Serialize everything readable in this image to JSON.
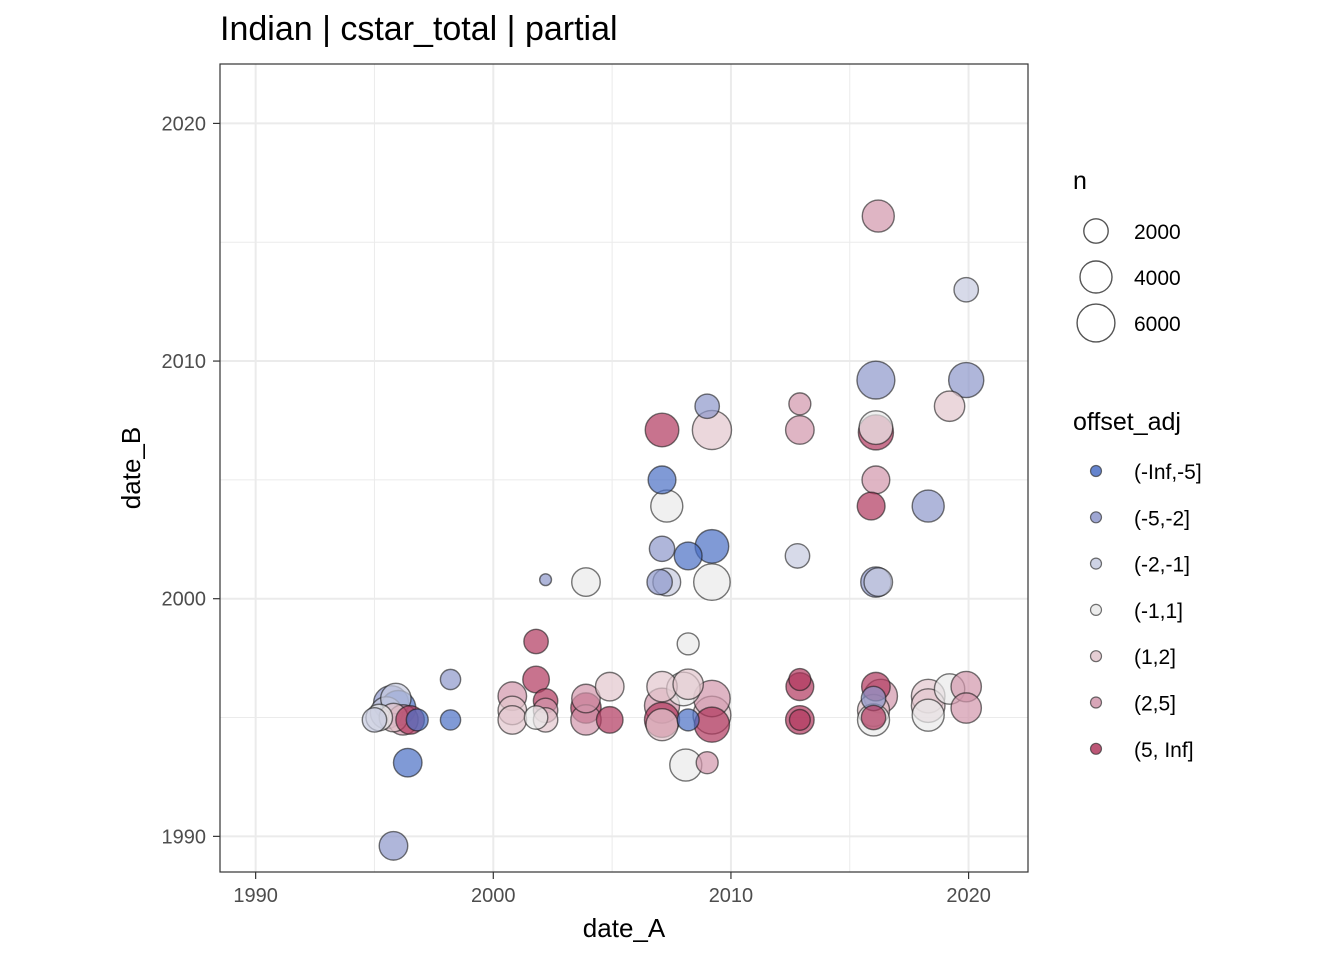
{
  "chart_data": {
    "type": "scatter",
    "title": "Indian | cstar_total | partial",
    "xlabel": "date_A",
    "ylabel": "date_B",
    "xlim": [
      1988.5,
      2022.5
    ],
    "ylim": [
      1988.5,
      2022.5
    ],
    "x_ticks": [
      "1990",
      "2000",
      "2010",
      "2020"
    ],
    "y_ticks": [
      "1990",
      "2000",
      "2010",
      "2020"
    ],
    "grid": true,
    "legend_position": "right",
    "size_legend": {
      "title": "n",
      "entries": [
        {
          "label": "2000",
          "value": 2000
        },
        {
          "label": "4000",
          "value": 4000
        },
        {
          "label": "6000",
          "value": 6000
        }
      ]
    },
    "color_legend": {
      "title": "offset_adj",
      "entries": [
        {
          "label": "(-Inf,-5]",
          "color": "#4A6FC5"
        },
        {
          "label": "(-5,-2]",
          "color": "#8D97CB"
        },
        {
          "label": "(-2,-1]",
          "color": "#C6CBE0"
        },
        {
          "label": "(-1,1]",
          "color": "#E9E9E9"
        },
        {
          "label": "(1,2]",
          "color": "#E2C6CD"
        },
        {
          "label": "(2,5]",
          "color": "#D196AB"
        },
        {
          "label": "(5, Inf]",
          "color": "#B0385E"
        }
      ]
    },
    "points": [
      {
        "x": 1995.8,
        "y": 1989.6,
        "n": 3000,
        "group": "(-5,-2]"
      },
      {
        "x": 1996.4,
        "y": 1993.1,
        "n": 3000,
        "group": "(-Inf,-5]"
      },
      {
        "x": 1995.0,
        "y": 1994.9,
        "n": 2000,
        "group": "(-2,-1]"
      },
      {
        "x": 1995.2,
        "y": 1995.0,
        "n": 2500,
        "group": "(-1,1]"
      },
      {
        "x": 1995.5,
        "y": 1995.2,
        "n": 4000,
        "group": "(-2,-1]"
      },
      {
        "x": 1995.7,
        "y": 1995.6,
        "n": 5000,
        "group": "(-5,-2]"
      },
      {
        "x": 1995.9,
        "y": 1995.8,
        "n": 3500,
        "group": "(-2,-1]"
      },
      {
        "x": 1996.0,
        "y": 1995.4,
        "n": 5000,
        "group": "(-Inf,-5]"
      },
      {
        "x": 1995.8,
        "y": 1995.0,
        "n": 3000,
        "group": "(1,2]"
      },
      {
        "x": 1996.2,
        "y": 1994.9,
        "n": 3500,
        "group": "(2,5]"
      },
      {
        "x": 1996.5,
        "y": 1994.9,
        "n": 3000,
        "group": "(5, Inf]"
      },
      {
        "x": 1996.8,
        "y": 1994.9,
        "n": 1500,
        "group": "(-Inf,-5]"
      },
      {
        "x": 1998.2,
        "y": 1996.6,
        "n": 1200,
        "group": "(-5,-2]"
      },
      {
        "x": 1998.2,
        "y": 1994.9,
        "n": 1200,
        "group": "(-Inf,-5]"
      },
      {
        "x": 2000.8,
        "y": 1995.9,
        "n": 3000,
        "group": "(2,5]"
      },
      {
        "x": 2000.8,
        "y": 1995.3,
        "n": 3000,
        "group": "(1,2]"
      },
      {
        "x": 2000.8,
        "y": 1994.9,
        "n": 3000,
        "group": "(1,2]"
      },
      {
        "x": 2001.8,
        "y": 1998.2,
        "n": 2000,
        "group": "(5, Inf]"
      },
      {
        "x": 2001.8,
        "y": 1996.6,
        "n": 2500,
        "group": "(5, Inf]"
      },
      {
        "x": 2001.8,
        "y": 1995.0,
        "n": 1800,
        "group": "(-1,1]"
      },
      {
        "x": 2002.2,
        "y": 2000.8,
        "n": 200,
        "group": "(-5,-2]"
      },
      {
        "x": 2002.2,
        "y": 1995.7,
        "n": 2000,
        "group": "(5, Inf]"
      },
      {
        "x": 2002.2,
        "y": 1995.3,
        "n": 2000,
        "group": "(2,5]"
      },
      {
        "x": 2002.2,
        "y": 1994.9,
        "n": 2000,
        "group": "(1,2]"
      },
      {
        "x": 2003.9,
        "y": 2000.7,
        "n": 3000,
        "group": "(-1,1]"
      },
      {
        "x": 2003.9,
        "y": 1995.8,
        "n": 3000,
        "group": "(2,5]"
      },
      {
        "x": 2003.9,
        "y": 1995.4,
        "n": 3500,
        "group": "(5, Inf]"
      },
      {
        "x": 2003.9,
        "y": 1994.9,
        "n": 3500,
        "group": "(2,5]"
      },
      {
        "x": 2004.9,
        "y": 1996.3,
        "n": 3000,
        "group": "(1,2]"
      },
      {
        "x": 2004.9,
        "y": 1994.9,
        "n": 2500,
        "group": "(5, Inf]"
      },
      {
        "x": 2007.1,
        "y": 2007.1,
        "n": 4500,
        "group": "(5, Inf]"
      },
      {
        "x": 2007.1,
        "y": 2005.0,
        "n": 2800,
        "group": "(-Inf,-5]"
      },
      {
        "x": 2007.3,
        "y": 2003.9,
        "n": 4000,
        "group": "(-1,1]"
      },
      {
        "x": 2007.1,
        "y": 2002.1,
        "n": 2200,
        "group": "(-5,-2]"
      },
      {
        "x": 2007.0,
        "y": 2000.7,
        "n": 2200,
        "group": "(-5,-2]"
      },
      {
        "x": 2007.3,
        "y": 2000.7,
        "n": 2800,
        "group": "(-2,-1]"
      },
      {
        "x": 2007.1,
        "y": 1996.3,
        "n": 3500,
        "group": "(1,2]"
      },
      {
        "x": 2007.1,
        "y": 1995.5,
        "n": 5000,
        "group": "(2,5]"
      },
      {
        "x": 2007.1,
        "y": 1994.9,
        "n": 5000,
        "group": "(5, Inf]"
      },
      {
        "x": 2007.1,
        "y": 1994.7,
        "n": 4000,
        "group": "(1,2]"
      },
      {
        "x": 2008.2,
        "y": 1998.1,
        "n": 1500,
        "group": "(-1,1]"
      },
      {
        "x": 2008.2,
        "y": 1996.4,
        "n": 3500,
        "group": "(1,2]"
      },
      {
        "x": 2008.0,
        "y": 1996.2,
        "n": 4500,
        "group": "(-1,1]"
      },
      {
        "x": 2008.2,
        "y": 1994.9,
        "n": 1500,
        "group": "(-Inf,-5]"
      },
      {
        "x": 2008.1,
        "y": 1993.0,
        "n": 4000,
        "group": "(-1,1]"
      },
      {
        "x": 2008.2,
        "y": 2001.8,
        "n": 2800,
        "group": "(-Inf,-5]"
      },
      {
        "x": 2009.0,
        "y": 2008.1,
        "n": 2000,
        "group": "(-5,-2]"
      },
      {
        "x": 2009.2,
        "y": 2007.1,
        "n": 6500,
        "group": "(1,2]"
      },
      {
        "x": 2009.2,
        "y": 2002.2,
        "n": 4500,
        "group": "(-Inf,-5]"
      },
      {
        "x": 2009.2,
        "y": 2000.7,
        "n": 5500,
        "group": "(-1,1]"
      },
      {
        "x": 2009.2,
        "y": 1995.8,
        "n": 5500,
        "group": "(2,5]"
      },
      {
        "x": 2009.2,
        "y": 1995.1,
        "n": 6000,
        "group": "(1,2]"
      },
      {
        "x": 2009.2,
        "y": 1994.7,
        "n": 5000,
        "group": "(5, Inf]"
      },
      {
        "x": 2009.0,
        "y": 1993.1,
        "n": 1500,
        "group": "(2,5]"
      },
      {
        "x": 2012.9,
        "y": 2008.2,
        "n": 1500,
        "group": "(2,5]"
      },
      {
        "x": 2012.9,
        "y": 2007.1,
        "n": 3000,
        "group": "(2,5]"
      },
      {
        "x": 2012.8,
        "y": 2001.8,
        "n": 2000,
        "group": "(-2,-1]"
      },
      {
        "x": 2012.9,
        "y": 1996.6,
        "n": 1500,
        "group": "(5, Inf]"
      },
      {
        "x": 2012.9,
        "y": 1996.3,
        "n": 2800,
        "group": "(5, Inf]"
      },
      {
        "x": 2012.9,
        "y": 1994.9,
        "n": 3000,
        "group": "(5, Inf]"
      },
      {
        "x": 2012.9,
        "y": 1994.9,
        "n": 1300,
        "group": "(5, Inf]"
      },
      {
        "x": 2016.2,
        "y": 2016.1,
        "n": 4000,
        "group": "(2,5]"
      },
      {
        "x": 2016.1,
        "y": 2009.2,
        "n": 6000,
        "group": "(-5,-2]"
      },
      {
        "x": 2016.1,
        "y": 2007.2,
        "n": 4500,
        "group": "(-1,1]"
      },
      {
        "x": 2016.1,
        "y": 2007.0,
        "n": 5000,
        "group": "(5, Inf]"
      },
      {
        "x": 2016.1,
        "y": 2005.0,
        "n": 2800,
        "group": "(2,5]"
      },
      {
        "x": 2015.9,
        "y": 2003.9,
        "n": 2800,
        "group": "(5, Inf]"
      },
      {
        "x": 2016.1,
        "y": 2000.7,
        "n": 3500,
        "group": "(-5,-2]"
      },
      {
        "x": 2016.2,
        "y": 2000.7,
        "n": 3000,
        "group": "(-2,-1]"
      },
      {
        "x": 2016.1,
        "y": 1996.3,
        "n": 3000,
        "group": "(5, Inf]"
      },
      {
        "x": 2016.3,
        "y": 1995.9,
        "n": 4500,
        "group": "(2,5]"
      },
      {
        "x": 2016.0,
        "y": 1995.3,
        "n": 4000,
        "group": "(1,2]"
      },
      {
        "x": 2016.0,
        "y": 1994.9,
        "n": 4000,
        "group": "(-1,1]"
      },
      {
        "x": 2016.0,
        "y": 1995.8,
        "n": 2000,
        "group": "(-5,-2]"
      },
      {
        "x": 2016.0,
        "y": 1995.0,
        "n": 2000,
        "group": "(5, Inf]"
      },
      {
        "x": 2018.3,
        "y": 2003.9,
        "n": 4000,
        "group": "(-5,-2]"
      },
      {
        "x": 2018.3,
        "y": 1995.9,
        "n": 4500,
        "group": "(1,2]"
      },
      {
        "x": 2018.3,
        "y": 1995.5,
        "n": 4500,
        "group": "(1,2]"
      },
      {
        "x": 2018.3,
        "y": 1995.1,
        "n": 4000,
        "group": "(-1,1]"
      },
      {
        "x": 2019.2,
        "y": 2008.1,
        "n": 3500,
        "group": "(1,2]"
      },
      {
        "x": 2019.2,
        "y": 1996.2,
        "n": 3500,
        "group": "(-1,1]"
      },
      {
        "x": 2019.9,
        "y": 2013.0,
        "n": 2000,
        "group": "(-2,-1]"
      },
      {
        "x": 2019.9,
        "y": 2009.2,
        "n": 5000,
        "group": "(-5,-2]"
      },
      {
        "x": 2019.9,
        "y": 1996.3,
        "n": 3500,
        "group": "(2,5]"
      },
      {
        "x": 2019.9,
        "y": 1995.4,
        "n": 3500,
        "group": "(2,5]"
      }
    ]
  }
}
